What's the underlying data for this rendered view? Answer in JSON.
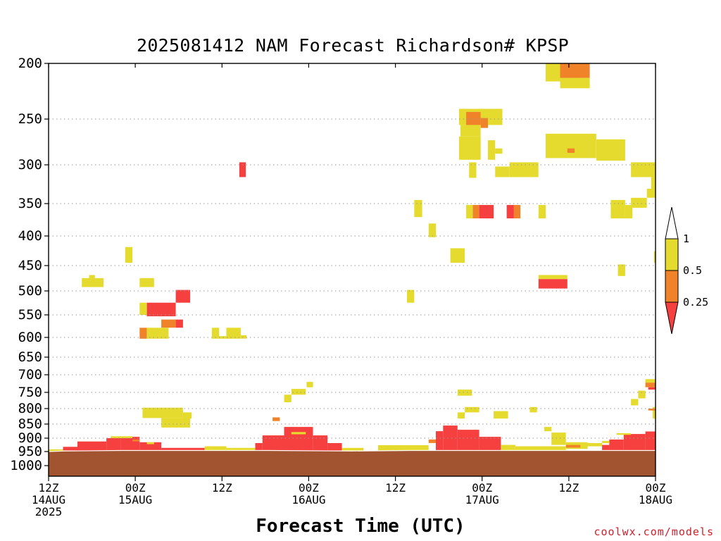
{
  "title": "2025081412 NAM Forecast Richardson# KPSP",
  "xlabel": "Forecast Time (UTC)",
  "credit": "coolwx.com/models",
  "colors": {
    "yellow": "#e5db2e",
    "orange": "#f0822a",
    "red": "#f5403f",
    "ground": "#a1542f",
    "grid": "#9a9a9a"
  },
  "chart_data": {
    "type": "heatmap",
    "title": "2025081412 NAM Forecast Richardson# KPSP",
    "xlabel": "Forecast Time (UTC)",
    "ylabel": "",
    "x_unit": "forecast hour from 2025081412",
    "x_range": [
      0,
      84
    ],
    "y_scale": "log",
    "y_range_hpa": [
      200,
      1050
    ],
    "y_ticks": [
      "200",
      "250",
      "300",
      "350",
      "400",
      "450",
      "500",
      "550",
      "600",
      "650",
      "700",
      "750",
      "800",
      "850",
      "900",
      "950",
      "1000"
    ],
    "x_ticks": [
      {
        "hour": 0,
        "label": "12Z\n14AUG\n2025"
      },
      {
        "hour": 12,
        "label": "00Z\n15AUG"
      },
      {
        "hour": 24,
        "label": "12Z"
      },
      {
        "hour": 36,
        "label": "00Z\n16AUG"
      },
      {
        "hour": 48,
        "label": "12Z"
      },
      {
        "hour": 60,
        "label": "00Z\n17AUG"
      },
      {
        "hour": 72,
        "label": "12Z"
      },
      {
        "hour": 84,
        "label": "00Z\n18AUG"
      }
    ],
    "grid": true,
    "colorbar": {
      "placement": "right",
      "levels": [
        "0.25",
        "0.5",
        "1"
      ],
      "bins": [
        {
          "range": "< 0.25",
          "color": "#f5403f"
        },
        {
          "range": "0.25 - 0.5",
          "color": "#f0822a"
        },
        {
          "range": "0.5 - 1",
          "color": "#e5db2e"
        }
      ]
    },
    "cells": [
      {
        "t0": 68.8,
        "t1": 73.7,
        "p0": 200,
        "p1": 215,
        "cat": "yellow"
      },
      {
        "t0": 70.8,
        "t1": 74.9,
        "p0": 200,
        "p1": 212,
        "cat": "orange"
      },
      {
        "t0": 70.8,
        "t1": 74.9,
        "p0": 212,
        "p1": 221,
        "cat": "yellow"
      },
      {
        "t0": 56.8,
        "t1": 62.8,
        "p0": 240,
        "p1": 256,
        "cat": "yellow"
      },
      {
        "t0": 57.8,
        "t1": 59.8,
        "p0": 243,
        "p1": 256,
        "cat": "orange"
      },
      {
        "t0": 59.8,
        "t1": 60.8,
        "p0": 249,
        "p1": 259,
        "cat": "orange"
      },
      {
        "t0": 57.0,
        "t1": 59.8,
        "p0": 256,
        "p1": 268,
        "cat": "yellow"
      },
      {
        "t0": 56.8,
        "t1": 59.8,
        "p0": 268,
        "p1": 294,
        "cat": "yellow"
      },
      {
        "t0": 60.8,
        "t1": 61.8,
        "p0": 272,
        "p1": 294,
        "cat": "yellow"
      },
      {
        "t0": 61.8,
        "t1": 62.8,
        "p0": 281,
        "p1": 287,
        "cat": "yellow"
      },
      {
        "t0": 68.8,
        "t1": 75.8,
        "p0": 265,
        "p1": 292,
        "cat": "yellow"
      },
      {
        "t0": 75.8,
        "t1": 79.8,
        "p0": 271,
        "p1": 295,
        "cat": "yellow"
      },
      {
        "t0": 71.8,
        "t1": 72.8,
        "p0": 281,
        "p1": 286,
        "cat": "orange"
      },
      {
        "t0": 58.2,
        "t1": 59.2,
        "p0": 297,
        "p1": 316,
        "cat": "yellow"
      },
      {
        "t0": 61.8,
        "t1": 63.8,
        "p0": 302,
        "p1": 315,
        "cat": "yellow"
      },
      {
        "t0": 63.8,
        "t1": 67.8,
        "p0": 297,
        "p1": 315,
        "cat": "yellow"
      },
      {
        "t0": 80.6,
        "t1": 84.0,
        "p0": 297,
        "p1": 315,
        "cat": "yellow"
      },
      {
        "t0": 83.4,
        "t1": 84.0,
        "p0": 315,
        "p1": 330,
        "cat": "yellow"
      },
      {
        "t0": 82.8,
        "t1": 84.0,
        "p0": 330,
        "p1": 342,
        "cat": "yellow"
      },
      {
        "t0": 80.6,
        "t1": 82.8,
        "p0": 342,
        "p1": 356,
        "cat": "yellow"
      },
      {
        "t0": 26.4,
        "t1": 27.3,
        "p0": 297,
        "p1": 315,
        "cat": "red"
      },
      {
        "t0": 50.6,
        "t1": 51.7,
        "p0": 345,
        "p1": 370,
        "cat": "yellow"
      },
      {
        "t0": 57.8,
        "t1": 58.7,
        "p0": 352,
        "p1": 372,
        "cat": "yellow"
      },
      {
        "t0": 58.7,
        "t1": 59.6,
        "p0": 352,
        "p1": 372,
        "cat": "orange"
      },
      {
        "t0": 59.6,
        "t1": 61.6,
        "p0": 352,
        "p1": 372,
        "cat": "red"
      },
      {
        "t0": 63.4,
        "t1": 64.4,
        "p0": 352,
        "p1": 372,
        "cat": "red"
      },
      {
        "t0": 64.4,
        "t1": 65.3,
        "p0": 352,
        "p1": 372,
        "cat": "orange"
      },
      {
        "t0": 67.8,
        "t1": 68.8,
        "p0": 352,
        "p1": 372,
        "cat": "yellow"
      },
      {
        "t0": 77.8,
        "t1": 79.8,
        "p0": 345,
        "p1": 372,
        "cat": "yellow"
      },
      {
        "t0": 79.8,
        "t1": 80.8,
        "p0": 352,
        "p1": 372,
        "cat": "yellow"
      },
      {
        "t0": 52.6,
        "t1": 53.6,
        "p0": 380,
        "p1": 402,
        "cat": "yellow"
      },
      {
        "t0": 55.6,
        "t1": 57.6,
        "p0": 420,
        "p1": 445,
        "cat": "yellow"
      },
      {
        "t0": 10.6,
        "t1": 11.6,
        "p0": 418,
        "p1": 445,
        "cat": "yellow"
      },
      {
        "t0": 78.8,
        "t1": 79.8,
        "p0": 448,
        "p1": 470,
        "cat": "yellow"
      },
      {
        "t0": 83.8,
        "t1": 84.0,
        "p0": 425,
        "p1": 445,
        "cat": "yellow"
      },
      {
        "t0": 4.6,
        "t1": 7.6,
        "p0": 474,
        "p1": 492,
        "cat": "yellow"
      },
      {
        "t0": 5.6,
        "t1": 6.4,
        "p0": 468,
        "p1": 476,
        "cat": "yellow"
      },
      {
        "t0": 12.6,
        "t1": 14.6,
        "p0": 474,
        "p1": 492,
        "cat": "yellow"
      },
      {
        "t0": 67.8,
        "t1": 71.8,
        "p0": 468,
        "p1": 476,
        "cat": "yellow"
      },
      {
        "t0": 67.8,
        "t1": 71.8,
        "p0": 476,
        "p1": 495,
        "cat": "red"
      },
      {
        "t0": 49.6,
        "t1": 50.6,
        "p0": 498,
        "p1": 524,
        "cat": "yellow"
      },
      {
        "t0": 17.6,
        "t1": 19.6,
        "p0": 498,
        "p1": 524,
        "cat": "red"
      },
      {
        "t0": 12.6,
        "t1": 13.6,
        "p0": 524,
        "p1": 550,
        "cat": "yellow"
      },
      {
        "t0": 13.6,
        "t1": 17.6,
        "p0": 524,
        "p1": 553,
        "cat": "red"
      },
      {
        "t0": 15.6,
        "t1": 17.6,
        "p0": 560,
        "p1": 578,
        "cat": "orange"
      },
      {
        "t0": 17.6,
        "t1": 18.6,
        "p0": 560,
        "p1": 578,
        "cat": "red"
      },
      {
        "t0": 12.6,
        "t1": 13.6,
        "p0": 578,
        "p1": 603,
        "cat": "orange"
      },
      {
        "t0": 13.6,
        "t1": 16.6,
        "p0": 578,
        "p1": 603,
        "cat": "yellow"
      },
      {
        "t0": 22.6,
        "t1": 23.6,
        "p0": 578,
        "p1": 603,
        "cat": "yellow"
      },
      {
        "t0": 23.6,
        "t1": 24.6,
        "p0": 597,
        "p1": 603,
        "cat": "yellow"
      },
      {
        "t0": 24.6,
        "t1": 26.6,
        "p0": 578,
        "p1": 603,
        "cat": "yellow"
      },
      {
        "t0": 26.6,
        "t1": 27.4,
        "p0": 595,
        "p1": 603,
        "cat": "yellow"
      },
      {
        "t0": 33.6,
        "t1": 35.6,
        "p0": 740,
        "p1": 757,
        "cat": "yellow"
      },
      {
        "t0": 32.6,
        "t1": 33.6,
        "p0": 757,
        "p1": 780,
        "cat": "yellow"
      },
      {
        "t0": 35.7,
        "t1": 36.6,
        "p0": 720,
        "p1": 735,
        "cat": "yellow"
      },
      {
        "t0": 56.6,
        "t1": 58.6,
        "p0": 742,
        "p1": 760,
        "cat": "yellow"
      },
      {
        "t0": 81.6,
        "t1": 82.6,
        "p0": 745,
        "p1": 768,
        "cat": "yellow"
      },
      {
        "t0": 80.6,
        "t1": 81.6,
        "p0": 770,
        "p1": 790,
        "cat": "yellow"
      },
      {
        "t0": 82.6,
        "t1": 84.0,
        "p0": 712,
        "p1": 722,
        "cat": "yellow"
      },
      {
        "t0": 82.6,
        "t1": 84.0,
        "p0": 722,
        "p1": 735,
        "cat": "orange"
      },
      {
        "t0": 83.0,
        "t1": 84.0,
        "p0": 735,
        "p1": 742,
        "cat": "red"
      },
      {
        "t0": 13.0,
        "t1": 18.6,
        "p0": 797,
        "p1": 830,
        "cat": "yellow"
      },
      {
        "t0": 15.6,
        "t1": 19.6,
        "p0": 830,
        "p1": 862,
        "cat": "yellow"
      },
      {
        "t0": 18.6,
        "t1": 19.8,
        "p0": 812,
        "p1": 832,
        "cat": "yellow"
      },
      {
        "t0": 31.0,
        "t1": 32.0,
        "p0": 828,
        "p1": 840,
        "cat": "orange"
      },
      {
        "t0": 57.6,
        "t1": 59.6,
        "p0": 795,
        "p1": 812,
        "cat": "yellow"
      },
      {
        "t0": 56.6,
        "t1": 57.6,
        "p0": 812,
        "p1": 832,
        "cat": "yellow"
      },
      {
        "t0": 61.6,
        "t1": 63.6,
        "p0": 808,
        "p1": 832,
        "cat": "yellow"
      },
      {
        "t0": 66.6,
        "t1": 67.6,
        "p0": 795,
        "p1": 812,
        "cat": "yellow"
      },
      {
        "t0": 83.6,
        "t1": 84.0,
        "p0": 795,
        "p1": 832,
        "cat": "yellow"
      },
      {
        "t0": 83.0,
        "t1": 84.0,
        "p0": 800,
        "p1": 806,
        "cat": "orange"
      },
      {
        "t0": 0.0,
        "t1": 2.0,
        "p0": 942,
        "p1": 950,
        "cat": "yellow"
      },
      {
        "t0": 2.0,
        "t1": 4.0,
        "p0": 932,
        "p1": 946,
        "cat": "red"
      },
      {
        "t0": 4.0,
        "t1": 8.0,
        "p0": 912,
        "p1": 946,
        "cat": "red"
      },
      {
        "t0": 8.0,
        "t1": 10.0,
        "p0": 900,
        "p1": 946,
        "cat": "red"
      },
      {
        "t0": 10.0,
        "t1": 12.6,
        "p0": 895,
        "p1": 946,
        "cat": "red"
      },
      {
        "t0": 12.6,
        "t1": 15.6,
        "p0": 915,
        "p1": 946,
        "cat": "red"
      },
      {
        "t0": 15.6,
        "t1": 21.6,
        "p0": 936,
        "p1": 946,
        "cat": "red"
      },
      {
        "t0": 8.6,
        "t1": 11.6,
        "p0": 893,
        "p1": 900,
        "cat": "yellow"
      },
      {
        "t0": 11.6,
        "t1": 12.6,
        "p0": 905,
        "p1": 912,
        "cat": "orange"
      },
      {
        "t0": 13.6,
        "t1": 14.6,
        "p0": 915,
        "p1": 922,
        "cat": "yellow"
      },
      {
        "t0": 21.6,
        "t1": 24.6,
        "p0": 930,
        "p1": 946,
        "cat": "yellow"
      },
      {
        "t0": 24.6,
        "t1": 28.6,
        "p0": 936,
        "p1": 946,
        "cat": "yellow"
      },
      {
        "t0": 28.6,
        "t1": 29.6,
        "p0": 918,
        "p1": 946,
        "cat": "red"
      },
      {
        "t0": 29.6,
        "t1": 32.6,
        "p0": 890,
        "p1": 946,
        "cat": "red"
      },
      {
        "t0": 32.6,
        "t1": 36.6,
        "p0": 860,
        "p1": 946,
        "cat": "red"
      },
      {
        "t0": 36.6,
        "t1": 38.6,
        "p0": 890,
        "p1": 946,
        "cat": "red"
      },
      {
        "t0": 38.6,
        "t1": 40.6,
        "p0": 918,
        "p1": 946,
        "cat": "red"
      },
      {
        "t0": 33.6,
        "t1": 35.6,
        "p0": 878,
        "p1": 886,
        "cat": "yellow"
      },
      {
        "t0": 40.6,
        "t1": 43.6,
        "p0": 936,
        "p1": 946,
        "cat": "yellow"
      },
      {
        "t0": 45.6,
        "t1": 52.6,
        "p0": 926,
        "p1": 946,
        "cat": "yellow"
      },
      {
        "t0": 52.6,
        "t1": 53.6,
        "p0": 905,
        "p1": 918,
        "cat": "orange"
      },
      {
        "t0": 53.6,
        "t1": 54.6,
        "p0": 875,
        "p1": 946,
        "cat": "red"
      },
      {
        "t0": 54.6,
        "t1": 56.6,
        "p0": 855,
        "p1": 946,
        "cat": "red"
      },
      {
        "t0": 56.6,
        "t1": 59.6,
        "p0": 870,
        "p1": 946,
        "cat": "red"
      },
      {
        "t0": 59.6,
        "t1": 62.6,
        "p0": 895,
        "p1": 946,
        "cat": "red"
      },
      {
        "t0": 62.6,
        "t1": 64.6,
        "p0": 925,
        "p1": 946,
        "cat": "yellow"
      },
      {
        "t0": 64.6,
        "t1": 71.6,
        "p0": 930,
        "p1": 946,
        "cat": "yellow"
      },
      {
        "t0": 68.6,
        "t1": 69.6,
        "p0": 860,
        "p1": 875,
        "cat": "yellow"
      },
      {
        "t0": 69.6,
        "t1": 71.6,
        "p0": 880,
        "p1": 925,
        "cat": "yellow"
      },
      {
        "t0": 71.6,
        "t1": 74.6,
        "p0": 915,
        "p1": 940,
        "cat": "yellow"
      },
      {
        "t0": 71.6,
        "t1": 73.6,
        "p0": 925,
        "p1": 935,
        "cat": "orange"
      },
      {
        "t0": 74.6,
        "t1": 76.6,
        "p0": 918,
        "p1": 930,
        "cat": "yellow"
      },
      {
        "t0": 76.6,
        "t1": 77.6,
        "p0": 925,
        "p1": 946,
        "cat": "red"
      },
      {
        "t0": 77.6,
        "t1": 79.6,
        "p0": 905,
        "p1": 946,
        "cat": "red"
      },
      {
        "t0": 79.6,
        "t1": 82.6,
        "p0": 885,
        "p1": 946,
        "cat": "red"
      },
      {
        "t0": 82.6,
        "t1": 84.0,
        "p0": 876,
        "p1": 946,
        "cat": "red"
      },
      {
        "t0": 76.6,
        "t1": 77.6,
        "p0": 910,
        "p1": 918,
        "cat": "yellow"
      },
      {
        "t0": 78.6,
        "t1": 80.6,
        "p0": 882,
        "p1": 888,
        "cat": "yellow"
      }
    ],
    "ground": [
      {
        "t": 0.0,
        "p": 950
      },
      {
        "t": 2.0,
        "p": 948
      },
      {
        "t": 10.0,
        "p": 946
      },
      {
        "t": 30.0,
        "p": 946
      },
      {
        "t": 42.0,
        "p": 948
      },
      {
        "t": 50.0,
        "p": 946
      },
      {
        "t": 60.0,
        "p": 946
      },
      {
        "t": 84.0,
        "p": 946
      }
    ]
  }
}
